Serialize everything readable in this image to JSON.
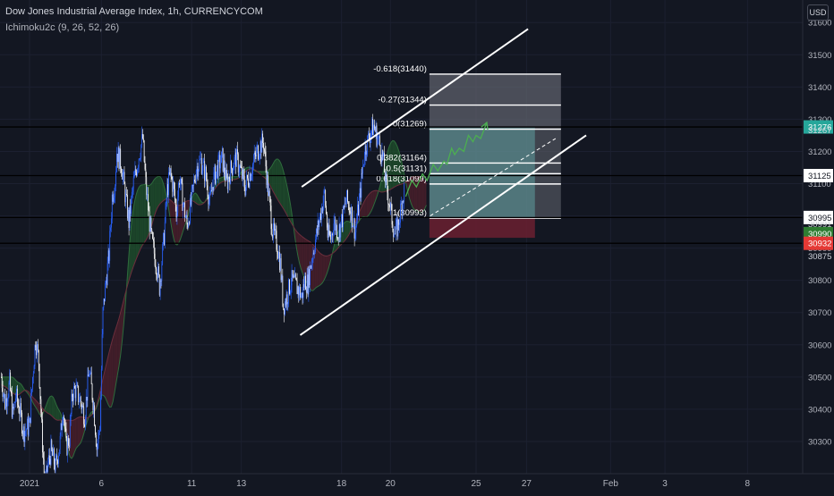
{
  "header": {
    "title": "Dow Jones Industrial Average Index, 1h, CURRENCYCOM",
    "indicator": "Ichimoku2c (9, 26, 52, 26)",
    "currency": "USD"
  },
  "chart_data": {
    "type": "candlestick",
    "symbol": "Dow Jones Industrial Average Index",
    "interval": "1h",
    "source": "CURRENCYCOM",
    "ylim": [
      30200,
      31670
    ],
    "y_ticks": [
      30300,
      30400,
      30500,
      30600,
      30700,
      30800,
      30900,
      31000,
      31100,
      31200,
      31300,
      31400,
      31500,
      31600
    ],
    "x_ticks": [
      {
        "label": "2021",
        "bar": 0
      },
      {
        "label": "6",
        "bar": 94
      },
      {
        "label": "11",
        "bar": 212
      },
      {
        "label": "13",
        "bar": 277
      },
      {
        "label": "18",
        "bar": 408
      },
      {
        "label": "20",
        "bar": 472
      },
      {
        "label": "25",
        "bar": 584
      },
      {
        "label": "27",
        "bar": 650
      },
      {
        "label": "Feb",
        "bar": 760
      },
      {
        "label": "3",
        "bar": 831
      },
      {
        "label": "8",
        "bar": 939
      }
    ],
    "price_path": [
      [
        -37,
        30500
      ],
      [
        -32,
        30420
      ],
      [
        -26,
        30480
      ],
      [
        -22,
        30380
      ],
      [
        -18,
        30440
      ],
      [
        -13,
        30400
      ],
      [
        -8,
        30330
      ],
      [
        0,
        30350
      ],
      [
        4,
        30500
      ],
      [
        8,
        30620
      ],
      [
        12,
        30550
      ],
      [
        16,
        30340
      ],
      [
        20,
        30150
      ],
      [
        24,
        30230
      ],
      [
        28,
        30270
      ],
      [
        34,
        30220
      ],
      [
        40,
        30300
      ],
      [
        44,
        30410
      ],
      [
        48,
        30280
      ],
      [
        52,
        30310
      ],
      [
        56,
        30450
      ],
      [
        60,
        30460
      ],
      [
        66,
        30430
      ],
      [
        72,
        30380
      ],
      [
        78,
        30520
      ],
      [
        84,
        30410
      ],
      [
        88,
        30280
      ],
      [
        92,
        30350
      ],
      [
        96,
        30700
      ],
      [
        100,
        30800
      ],
      [
        104,
        30880
      ],
      [
        108,
        31060
      ],
      [
        112,
        31110
      ],
      [
        114,
        31200
      ],
      [
        120,
        31160
      ],
      [
        126,
        31050
      ],
      [
        130,
        30980
      ],
      [
        136,
        31100
      ],
      [
        140,
        31150
      ],
      [
        144,
        31200
      ],
      [
        148,
        31240
      ],
      [
        152,
        31100
      ],
      [
        156,
        31000
      ],
      [
        160,
        30920
      ],
      [
        166,
        30850
      ],
      [
        170,
        30780
      ],
      [
        176,
        30940
      ],
      [
        180,
        31080
      ],
      [
        184,
        31130
      ],
      [
        188,
        31090
      ],
      [
        192,
        31010
      ],
      [
        196,
        31120
      ],
      [
        200,
        31050
      ],
      [
        206,
        30970
      ],
      [
        212,
        31050
      ],
      [
        218,
        31150
      ],
      [
        224,
        31170
      ],
      [
        230,
        31130
      ],
      [
        236,
        31040
      ],
      [
        240,
        31110
      ],
      [
        246,
        31150
      ],
      [
        252,
        31180
      ],
      [
        258,
        31100
      ],
      [
        264,
        31150
      ],
      [
        270,
        31180
      ],
      [
        276,
        31140
      ],
      [
        282,
        31090
      ],
      [
        288,
        31130
      ],
      [
        292,
        31160
      ],
      [
        298,
        31200
      ],
      [
        302,
        31220
      ],
      [
        306,
        31230
      ],
      [
        312,
        31080
      ],
      [
        318,
        30950
      ],
      [
        324,
        30910
      ],
      [
        328,
        30850
      ],
      [
        332,
        30720
      ],
      [
        338,
        30760
      ],
      [
        342,
        30800
      ],
      [
        346,
        30790
      ],
      [
        352,
        30770
      ],
      [
        356,
        30750
      ],
      [
        360,
        30800
      ],
      [
        364,
        30790
      ],
      [
        370,
        30880
      ],
      [
        376,
        30950
      ],
      [
        380,
        31000
      ],
      [
        386,
        31070
      ],
      [
        390,
        30940
      ],
      [
        394,
        30930
      ],
      [
        398,
        30980
      ],
      [
        404,
        30950
      ],
      [
        410,
        31000
      ],
      [
        414,
        31050
      ],
      [
        420,
        31020
      ],
      [
        426,
        30950
      ],
      [
        432,
        31060
      ],
      [
        438,
        31200
      ],
      [
        442,
        31230
      ],
      [
        446,
        31260
      ],
      [
        450,
        31280
      ],
      [
        454,
        31250
      ],
      [
        458,
        31220
      ],
      [
        462,
        31180
      ],
      [
        466,
        31100
      ],
      [
        470,
        31050
      ],
      [
        474,
        30990
      ],
      [
        478,
        30940
      ],
      [
        482,
        30970
      ],
      [
        486,
        31030
      ],
      [
        490,
        31080
      ]
    ],
    "forecast_path": [
      [
        492,
        31060
      ],
      [
        500,
        31110
      ],
      [
        506,
        31090
      ],
      [
        514,
        31130
      ],
      [
        520,
        31110
      ],
      [
        528,
        31160
      ],
      [
        534,
        31140
      ],
      [
        542,
        31170
      ],
      [
        546,
        31160
      ],
      [
        552,
        31210
      ],
      [
        556,
        31190
      ],
      [
        562,
        31210
      ],
      [
        568,
        31200
      ],
      [
        574,
        31250
      ],
      [
        580,
        31230
      ],
      [
        584,
        31250
      ],
      [
        590,
        31240
      ],
      [
        598,
        31290
      ]
    ],
    "horizontal_levels": [
      31276,
      31125,
      30995,
      30915
    ],
    "channel": {
      "upper": [
        [
          356,
          31090
        ],
        [
          652,
          31580
        ]
      ],
      "lower": [
        [
          354,
          30630
        ],
        [
          728,
          31250
        ]
      ],
      "mid_dashed": [
        [
          524,
          31000
        ],
        [
          688,
          31240
        ]
      ]
    },
    "fibonacci": {
      "from_bar": 523,
      "to_bar": 695,
      "levels": [
        {
          "label": "-0.618(31440)",
          "ratio": -0.618,
          "price": 31440
        },
        {
          "label": "-0.27(31344)",
          "ratio": -0.27,
          "price": 31344
        },
        {
          "label": "0(31269)",
          "ratio": 0,
          "price": 31269
        },
        {
          "label": "0.382(31164)",
          "ratio": 0.382,
          "price": 31164
        },
        {
          "label": "0.5(31131)",
          "ratio": 0.5,
          "price": 31131
        },
        {
          "label": "0.618(31099)",
          "ratio": 0.618,
          "price": 31099
        },
        {
          "label": "1(30993)",
          "ratio": 1,
          "price": 30993
        }
      ]
    },
    "position_box": {
      "entry": 30995,
      "target": 31276,
      "stop": 30932,
      "from_bar": 523,
      "to_bar": 661
    },
    "price_axis_labels": [
      {
        "text": "31276",
        "price": 31276,
        "bg": "#26a69a",
        "fg": "#ffffff"
      },
      {
        "text": "31267",
        "price": 31267,
        "bg": "",
        "fg": "#d1d4dc"
      },
      {
        "text": "31125",
        "price": 31125,
        "bg": "#ffffff",
        "fg": "#131722"
      },
      {
        "text": "30995",
        "price": 30995,
        "bg": "#ffffff",
        "fg": "#131722"
      },
      {
        "text": "30991",
        "price": 30975,
        "bg": "",
        "fg": "#d1d4dc"
      },
      {
        "text": "30990",
        "price": 30945,
        "bg": "#2e7d32",
        "fg": "#ffffff"
      },
      {
        "text": "30932",
        "price": 30915,
        "bg": "#e53935",
        "fg": "#ffffff"
      },
      {
        "text": "30875",
        "price": 30875,
        "bg": "",
        "fg": "#d1d4dc"
      }
    ],
    "colors": {
      "background": "#131722",
      "candle_up": "#2962ff",
      "candle_down": "#ffffff",
      "cloud_green": "#1e4d2b",
      "cloud_red": "#4a1f2a",
      "forecast": "#4caf50",
      "channel": "#ffffff",
      "fib_gray": "#5d606b",
      "fib_teal": "#5f9ea0",
      "stop_red": "#6b2030"
    }
  }
}
